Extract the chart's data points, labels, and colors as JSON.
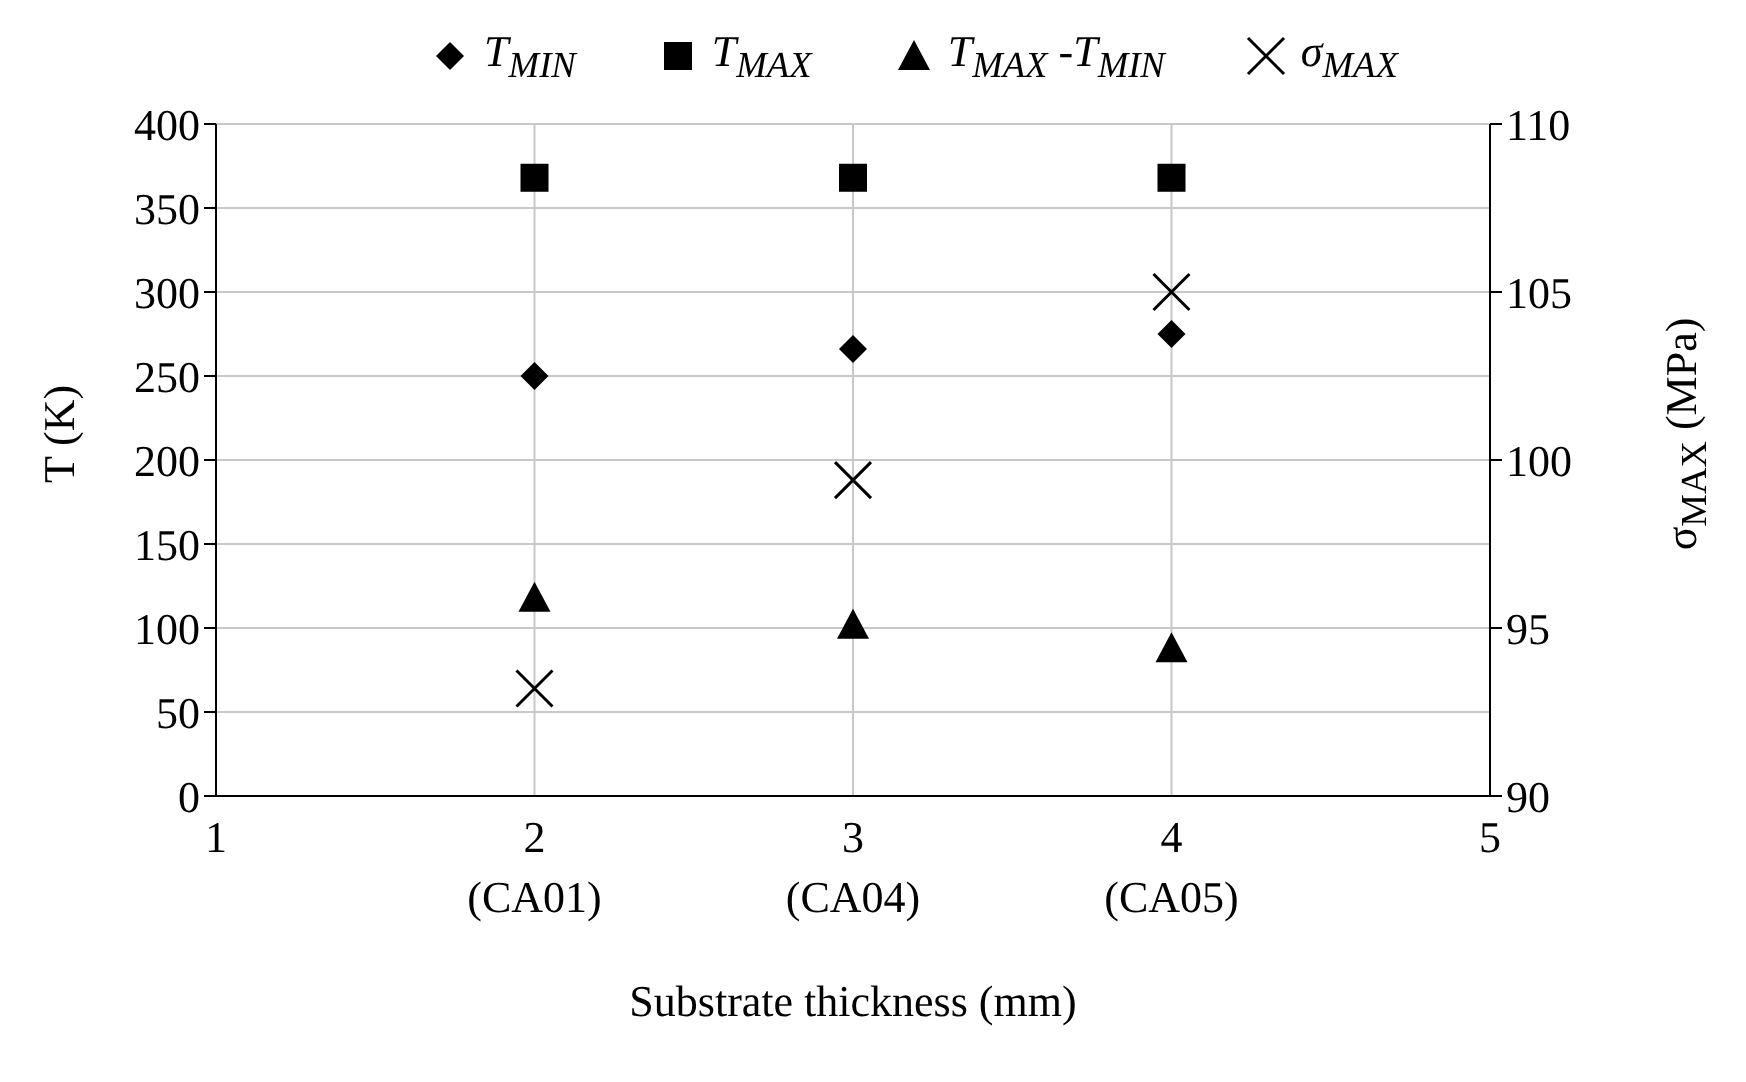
{
  "chart_data": {
    "type": "scatter",
    "xlabel": "Substrate thickness (mm)",
    "ylabel": "T (K)",
    "y2label": "σ$_{MAX}$ (MPa)",
    "x": [
      2,
      3,
      4
    ],
    "xlim": [
      1,
      5
    ],
    "xticks": [
      1,
      {
        "value": 2,
        "label": "2\n(CA01)"
      },
      {
        "value": 3,
        "label": "3\n(CA04)"
      },
      {
        "value": 4,
        "label": "4\n(CA05)"
      },
      5
    ],
    "ylim": [
      0,
      400
    ],
    "yticks": [
      0,
      50,
      100,
      150,
      200,
      250,
      300,
      350,
      400
    ],
    "y2lim": [
      90,
      110
    ],
    "y2ticks": [
      90,
      95,
      100,
      105,
      110
    ],
    "grid": true,
    "legend": "top",
    "series": [
      {
        "name": "T$_{MIN}$",
        "color": "#000000",
        "marker": "diamond",
        "values": [
          250,
          266,
          275
        ]
      },
      {
        "name": "T$_{MAX}$",
        "color": "#000000",
        "marker": "square",
        "values": [
          368,
          368,
          368
        ]
      },
      {
        "name": "T$_{MAX}$ -T$_{MIN}$",
        "color": "#000000",
        "marker": "triangle",
        "values": [
          118,
          102,
          88
        ]
      },
      {
        "name": "σ$_{MAX}$",
        "color": "#000000",
        "marker": "cross",
        "axis": "y2",
        "values": [
          93.2,
          99.4,
          105.0
        ]
      }
    ]
  }
}
